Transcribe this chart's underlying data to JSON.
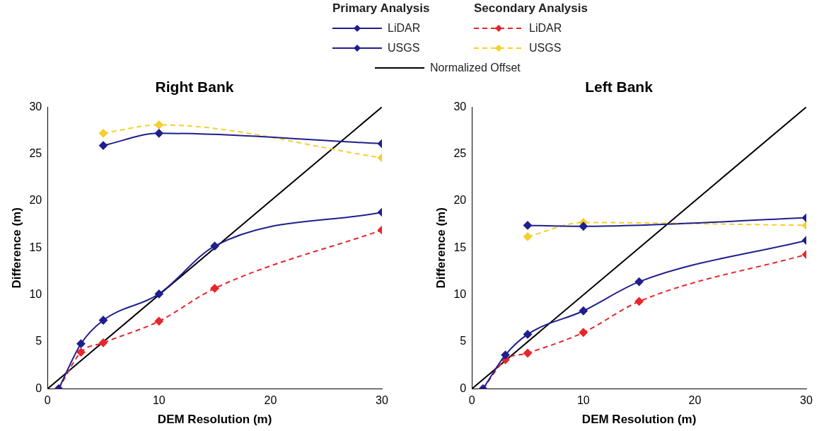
{
  "chart_data": [
    {
      "type": "line",
      "title": "Right Bank",
      "xlabel": "DEM Resolution (m)",
      "ylabel": "Difference (m)",
      "xlim": [
        0,
        30
      ],
      "xticks": [
        0,
        10,
        20,
        30
      ],
      "ylim": [
        0,
        30
      ],
      "yticks": [
        0,
        5,
        10,
        15,
        20,
        25,
        30
      ],
      "grid": false,
      "legend": "top",
      "annotations": [
        "Primary Analysis",
        "Secondary Analysis"
      ],
      "series": [
        {
          "name": "LiDAR",
          "color": "#1f1f8f",
          "line_style": "solid",
          "marker": "diamond",
          "x": [
            1,
            3,
            5,
            10,
            15,
            30
          ],
          "values": [
            0,
            4.8,
            7.3,
            10.1,
            15.2,
            18.8
          ]
        },
        {
          "name": "USGS",
          "color": "#1f1f8f",
          "line_style": "solid",
          "marker": "diamond",
          "x": [
            5,
            10,
            30
          ],
          "values": [
            25.9,
            27.2,
            26.1
          ]
        },
        {
          "name": "LiDAR",
          "color": "#e8262b",
          "line_style": "dashed",
          "marker": "diamond",
          "x": [
            1,
            3,
            5,
            10,
            15,
            30
          ],
          "values": [
            0,
            3.9,
            4.9,
            7.2,
            10.7,
            16.9
          ]
        },
        {
          "name": "USGS",
          "color": "#f5cf2a",
          "line_style": "dashed",
          "marker": "diamond",
          "x": [
            5,
            10,
            30
          ],
          "values": [
            27.2,
            28.1,
            24.6
          ]
        },
        {
          "name": "Normalized Offset",
          "color": "#000000",
          "line_style": "solid",
          "marker": "none",
          "x": [
            0,
            30
          ],
          "values": [
            0,
            30
          ]
        }
      ]
    },
    {
      "type": "line",
      "title": "Left Bank",
      "xlabel": "DEM Resolution (m)",
      "ylabel": "Difference (m)",
      "xlim": [
        0,
        30
      ],
      "xticks": [
        0,
        10,
        20,
        30
      ],
      "ylim": [
        0,
        30
      ],
      "yticks": [
        0,
        5,
        10,
        15,
        20,
        25,
        30
      ],
      "grid": false,
      "series": [
        {
          "color": "#1f1f8f",
          "line_style": "solid",
          "marker": "diamond",
          "x": [
            1,
            3,
            5,
            10,
            15,
            30
          ],
          "values": [
            0,
            3.6,
            5.8,
            8.3,
            11.4,
            15.8
          ]
        },
        {
          "color": "#1f1f8f",
          "line_style": "solid",
          "marker": "diamond",
          "x": [
            5,
            10,
            30
          ],
          "values": [
            17.4,
            17.3,
            18.2
          ]
        },
        {
          "color": "#e8262b",
          "line_style": "dashed",
          "marker": "diamond",
          "x": [
            1,
            3,
            5,
            10,
            15,
            30
          ],
          "values": [
            0,
            3.1,
            3.8,
            6.0,
            9.3,
            14.3
          ]
        },
        {
          "color": "#f5cf2a",
          "line_style": "dashed",
          "marker": "diamond",
          "x": [
            5,
            10,
            30
          ],
          "values": [
            16.2,
            17.7,
            17.4
          ]
        },
        {
          "color": "#000000",
          "line_style": "solid",
          "marker": "none",
          "x": [
            0,
            30
          ],
          "values": [
            0,
            30
          ]
        }
      ]
    }
  ]
}
